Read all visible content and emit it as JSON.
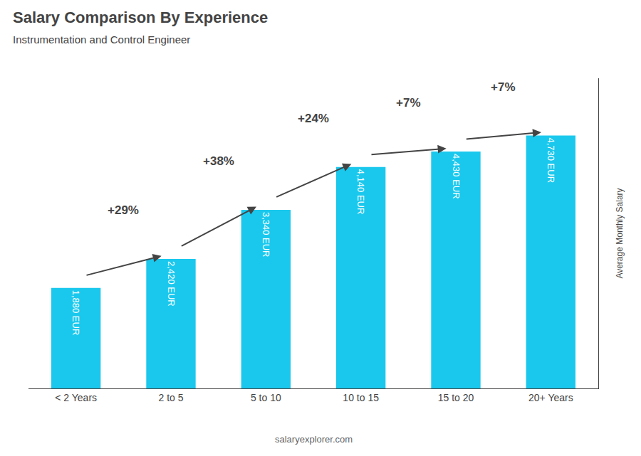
{
  "chart_data": {
    "type": "bar",
    "title": "Salary Comparison By Experience",
    "subtitle": "Instrumentation and Control Engineer",
    "ylabel": "Average Monthly Salary",
    "categories": [
      "< 2 Years",
      "2 to 5",
      "5 to 10",
      "10 to 15",
      "15 to 20",
      "20+ Years"
    ],
    "values": [
      1880,
      2420,
      3340,
      4140,
      4430,
      4730
    ],
    "value_labels": [
      "1,880 EUR",
      "2,420 EUR",
      "3,340 EUR",
      "4,140 EUR",
      "4,430 EUR",
      "4,730 EUR"
    ],
    "data_labels": true,
    "color": "#1ac8ed",
    "annotations": [
      "+29%",
      "+38%",
      "+24%",
      "+7%",
      "+7%"
    ],
    "watermark": "salaryexplorer.com",
    "ylim": [
      0,
      5800
    ],
    "grid": false,
    "tick_labels": "x"
  }
}
